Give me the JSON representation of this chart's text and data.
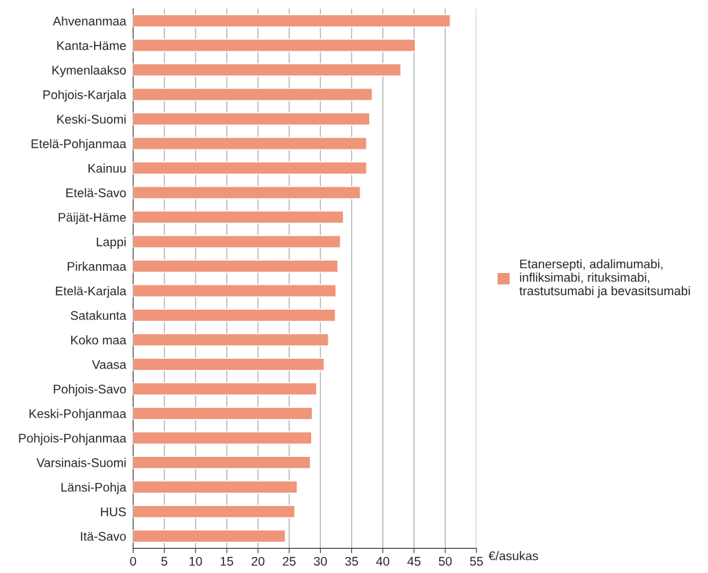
{
  "chart_data": {
    "type": "bar",
    "orientation": "horizontal",
    "xlabel": "€/asukas",
    "categories": [
      "Ahvenanmaa",
      "Kanta-Häme",
      "Kymenlaakso",
      "Pohjois-Karjala",
      "Keski-Suomi",
      "Etelä-Pohjanmaa",
      "Kainuu",
      "Etelä-Savo",
      "Päijät-Häme",
      "Lappi",
      "Pirkanmaa",
      "Etelä-Karjala",
      "Satakunta",
      "Koko maa",
      "Vaasa",
      "Pohjois-Savo",
      "Keski-Pohjanmaa",
      "Pohjois-Pohjanmaa",
      "Varsinais-Suomi",
      "Länsi-Pohja",
      "HUS",
      "Itä-Savo"
    ],
    "series": [
      {
        "name": "Etanersepti, adalimumabi,\ninfliksimabi, rituksimabi,\ntrastutsumabi ja bevasitsumabi",
        "color": "#ee957a",
        "values": [
          50.8,
          45.2,
          42.9,
          38.3,
          37.9,
          37.4,
          37.4,
          36.4,
          33.7,
          33.2,
          32.8,
          32.5,
          32.4,
          31.3,
          30.6,
          29.4,
          28.7,
          28.6,
          28.4,
          26.3,
          25.9,
          24.4
        ]
      }
    ],
    "xlim": [
      0,
      55
    ],
    "xticks": [
      0,
      5,
      10,
      15,
      20,
      25,
      30,
      35,
      40,
      45,
      50,
      55
    ],
    "grid": "x",
    "legend": "right"
  }
}
